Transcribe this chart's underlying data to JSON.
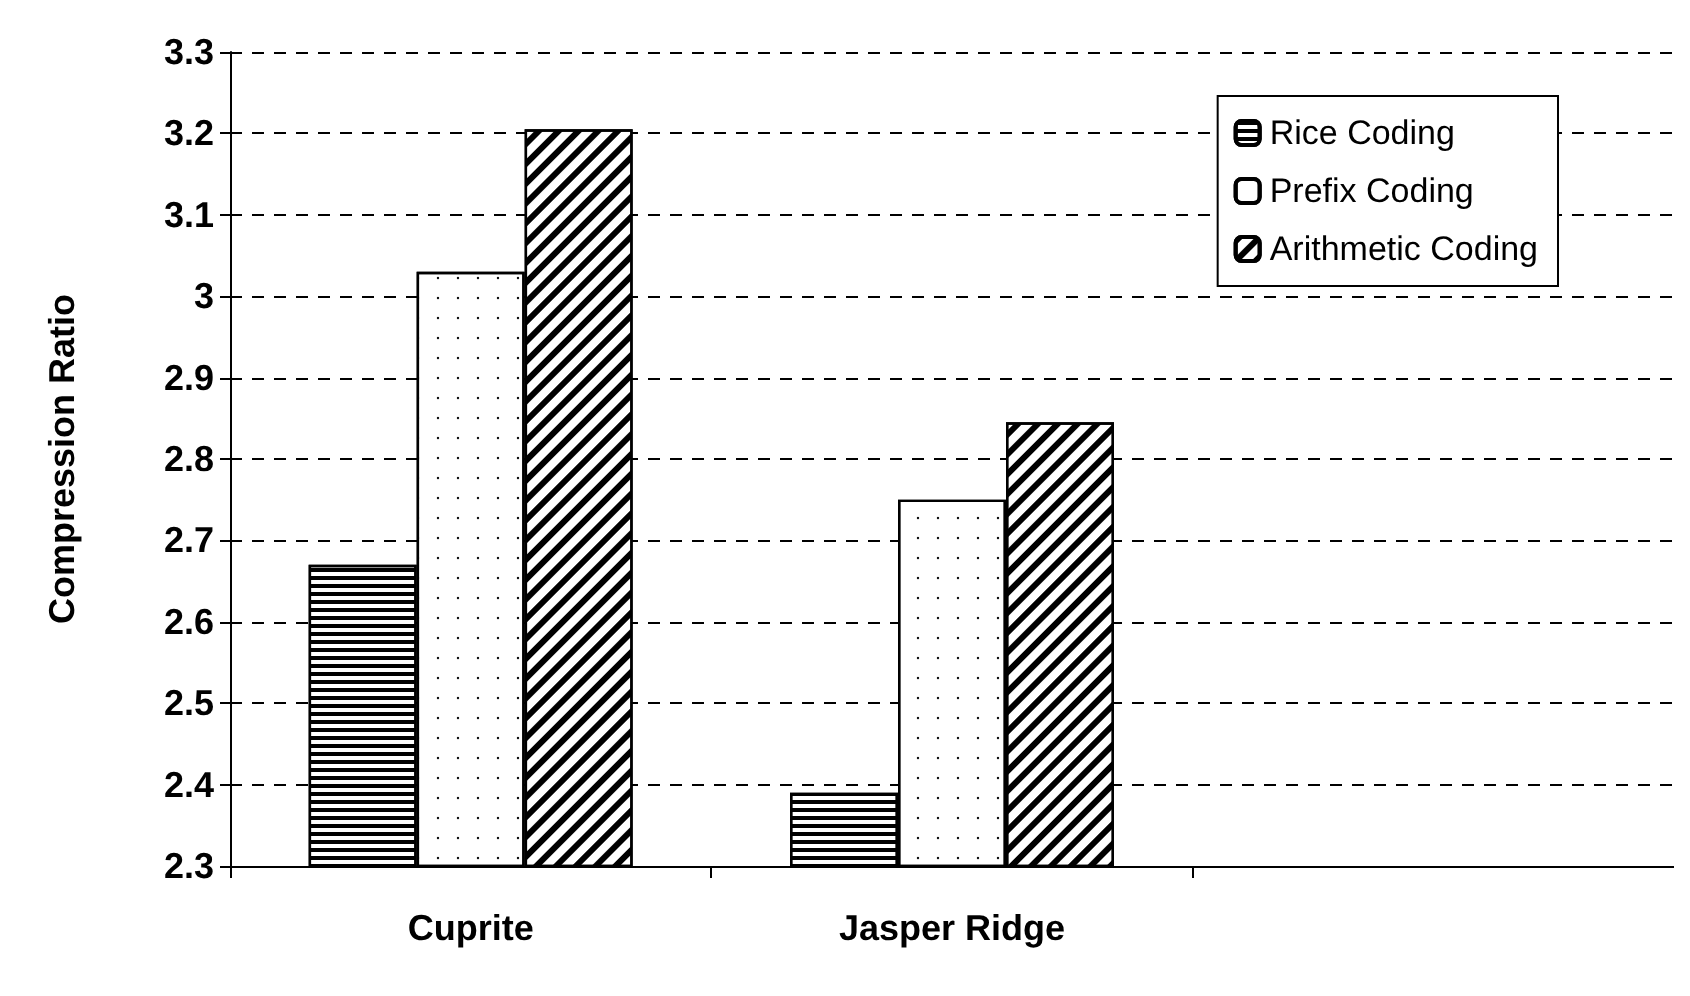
{
  "chart_data": {
    "type": "bar",
    "ylabel": "Compression Ratio",
    "categories": [
      "Cuprite",
      "Jasper Ridge",
      null
    ],
    "series": [
      {
        "name": "Rice Coding",
        "color": "#000000",
        "values": [
          2.67,
          2.39,
          null
        ]
      },
      {
        "name": "Prefix Coding",
        "color": "#000000",
        "values": [
          3.03,
          2.75,
          null
        ]
      },
      {
        "name": "Arithmetic Coding",
        "color": "#000000",
        "values": [
          3.205,
          2.845,
          null
        ]
      }
    ],
    "ylim": [
      2.3,
      3.3
    ],
    "yticks": [
      2.3,
      2.4,
      2.5,
      2.6,
      2.7,
      2.8,
      2.9,
      3,
      3.1,
      3.2,
      3.3
    ],
    "grid": "y",
    "legend": "top right"
  }
}
